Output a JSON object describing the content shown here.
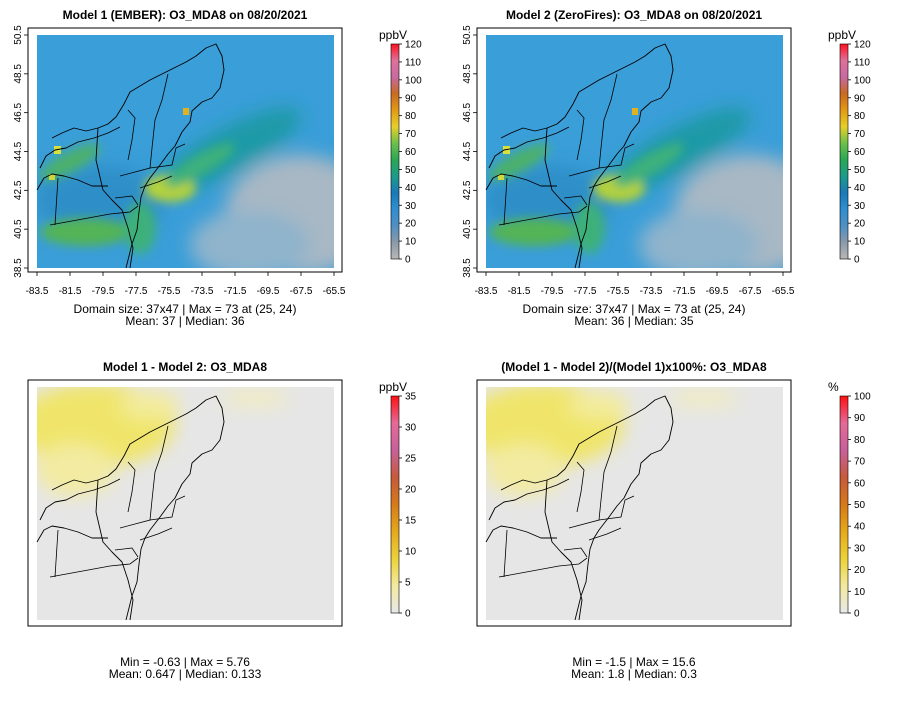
{
  "chart_data": [
    {
      "type": "heatmap",
      "title": "Model 1 (EMBER): O3_MDA8 on 08/20/2021",
      "unit_label": "ppbV",
      "x_ticks": [
        "-83.5",
        "-81.5",
        "-79.5",
        "-77.5",
        "-75.5",
        "-73.5",
        "-71.5",
        "-69.5",
        "-67.5",
        "-65.5"
      ],
      "y_ticks": [
        "38.5",
        "40.5",
        "42.5",
        "44.5",
        "46.5",
        "48.5",
        "50.5"
      ],
      "xlim": [
        -84,
        -65
      ],
      "ylim": [
        38,
        51
      ],
      "colorbar_ticks": [
        "0",
        "10",
        "20",
        "30",
        "40",
        "50",
        "60",
        "70",
        "80",
        "90",
        "100",
        "110",
        "120"
      ],
      "colorbar_range": [
        0,
        120
      ],
      "stats_line1": "Domain size: 37x47 | Max = 73 at (25, 24)",
      "stats_line2": "Mean: 37 |  Median: 36",
      "stats": {
        "max": 73,
        "mean": 37,
        "median": 36,
        "max_location": [
          25,
          24
        ],
        "domain_size": [
          37,
          47
        ]
      }
    },
    {
      "type": "heatmap",
      "title": "Model 2 (ZeroFires): O3_MDA8 on 08/20/2021",
      "unit_label": "ppbV",
      "x_ticks": [
        "-83.5",
        "-81.5",
        "-79.5",
        "-77.5",
        "-75.5",
        "-73.5",
        "-71.5",
        "-69.5",
        "-67.5",
        "-65.5"
      ],
      "y_ticks": [
        "38.5",
        "40.5",
        "42.5",
        "44.5",
        "46.5",
        "48.5",
        "50.5"
      ],
      "xlim": [
        -84,
        -65
      ],
      "ylim": [
        38,
        51
      ],
      "colorbar_ticks": [
        "0",
        "10",
        "20",
        "30",
        "40",
        "50",
        "60",
        "70",
        "80",
        "90",
        "100",
        "110",
        "120"
      ],
      "colorbar_range": [
        0,
        120
      ],
      "stats_line1": "Domain size: 37x47 | Max = 73 at (25, 24)",
      "stats_line2": "Mean: 36 |  Median: 35",
      "stats": {
        "max": 73,
        "mean": 36,
        "median": 35,
        "max_location": [
          25,
          24
        ],
        "domain_size": [
          37,
          47
        ]
      }
    },
    {
      "type": "heatmap",
      "title": "Model 1 - Model 2: O3_MDA8",
      "unit_label": "ppbV",
      "colorbar_ticks": [
        "0",
        "5",
        "10",
        "15",
        "20",
        "25",
        "30",
        "35"
      ],
      "colorbar_range": [
        0,
        35
      ],
      "stats_line1": "Min = -0.63 | Max = 5.76",
      "stats_line2": "Mean: 0.647 |  Median: 0.133",
      "stats": {
        "min": -0.63,
        "max": 5.76,
        "mean": 0.647,
        "median": 0.133
      }
    },
    {
      "type": "heatmap",
      "title": "(Model 1 - Model 2)/(Model 1)x100%: O3_MDA8",
      "unit_label": "%",
      "colorbar_ticks": [
        "0",
        "10",
        "20",
        "30",
        "40",
        "50",
        "60",
        "70",
        "80",
        "90",
        "100"
      ],
      "colorbar_range": [
        0,
        100
      ],
      "stats_line1": "Min = -1.5 | Max = 15.6",
      "stats_line2": "Mean: 1.8 |  Median: 0.3",
      "stats": {
        "min": -1.5,
        "max": 15.6,
        "mean": 1.8,
        "median": 0.3
      }
    }
  ]
}
